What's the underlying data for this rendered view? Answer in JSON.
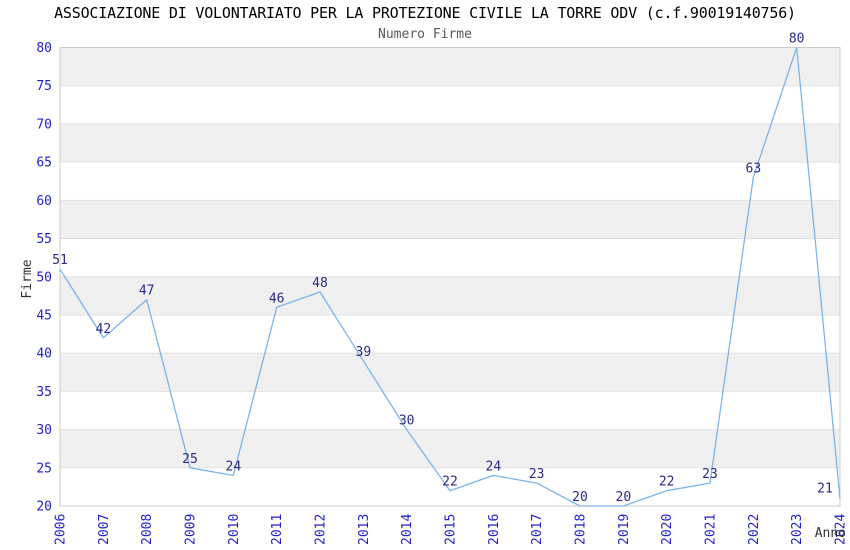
{
  "chart_data": {
    "type": "line",
    "title": "ASSOCIAZIONE DI VOLONTARIATO PER LA PROTEZIONE CIVILE LA TORRE ODV (c.f.90019140756)",
    "subtitle": "Numero Firme",
    "xlabel": "Anno",
    "ylabel": "Firme",
    "categories": [
      "2006",
      "2007",
      "2008",
      "2009",
      "2010",
      "2011",
      "2012",
      "2013",
      "2014",
      "2015",
      "2016",
      "2017",
      "2018",
      "2019",
      "2020",
      "2021",
      "2022",
      "2023",
      "2024"
    ],
    "values": [
      51,
      42,
      47,
      25,
      24,
      46,
      48,
      39,
      30,
      22,
      24,
      23,
      20,
      20,
      22,
      23,
      63,
      80,
      21
    ],
    "ylim": [
      20,
      80
    ],
    "ytick_step": 5,
    "yticks": [
      20,
      25,
      30,
      35,
      40,
      45,
      50,
      55,
      60,
      65,
      70,
      75,
      80
    ],
    "grid": "alternating horizontal bands every 5 units, gray band at top (75-80)",
    "legend_position": "none",
    "data_labels": "shown above each point",
    "colors": {
      "line": "#7cb5ec",
      "band": "#f0f0f0",
      "gridline": "#e2e2e2",
      "plot_border": "#cccccc",
      "tick_label": "#2222cc",
      "data_label": "#2a2a85",
      "title": "#000000",
      "subtitle": "#595959",
      "axis_label": "#333333"
    }
  }
}
